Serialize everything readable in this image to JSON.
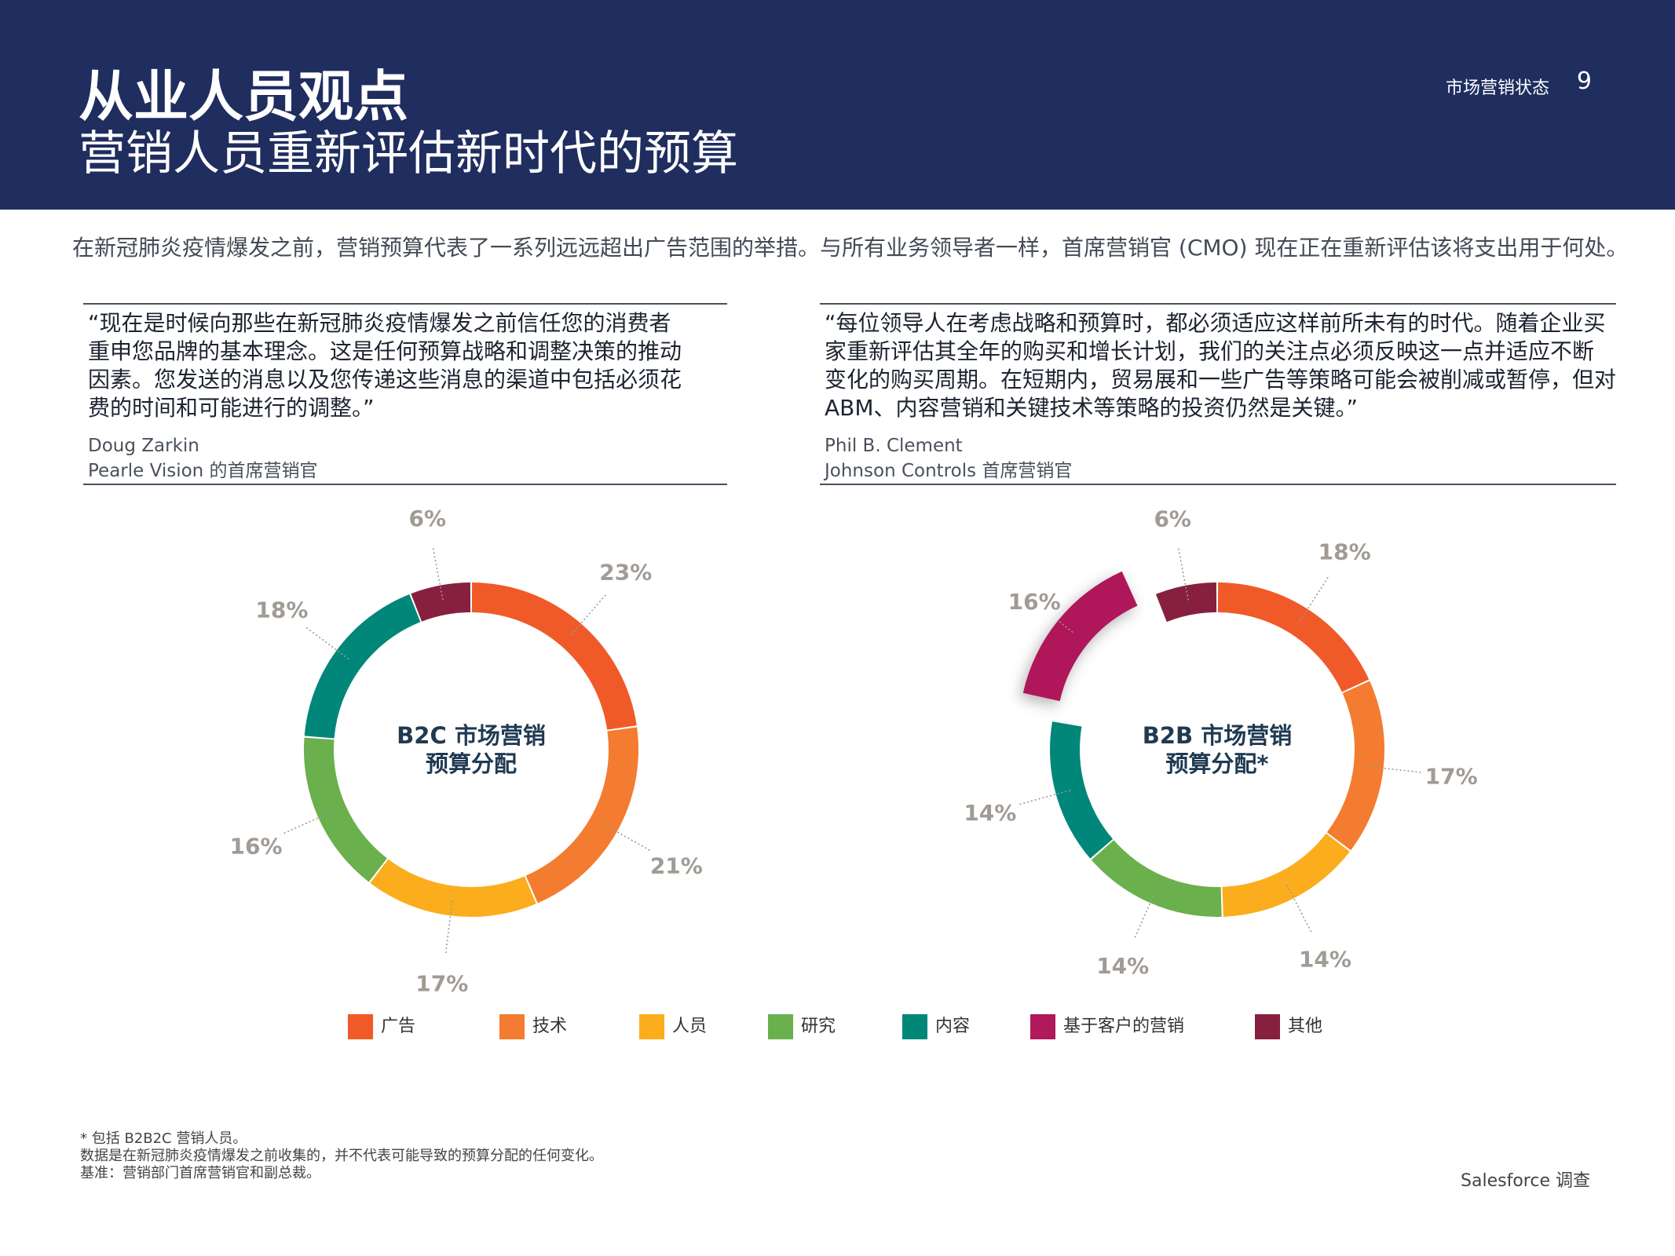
{
  "header": {
    "title_line1": "从业人员观点",
    "title_line2": "营销人员重新评估新时代的预算",
    "section": "市场营销状态",
    "page_number": "9"
  },
  "intro": "在新冠肺炎疫情爆发之前，营销预算代表了一系列远远超出广告范围的举措。与所有业务领导者一样，首席营销官 (CMO) 现在正在重新评估该将支出用于何处。",
  "quotes": [
    {
      "lines": [
        "“现在是时候向那些在新冠肺炎疫情爆发之前信任您的消费者",
        "重申您品牌的基本理念。这是任何预算战略和调整决策的推动",
        "因素。您发送的消息以及您传递这些消息的渠道中包括必须花",
        "费的时间和可能进行的调整。”"
      ],
      "author": "Doug Zarkin",
      "role": "Pearle Vision 的首席营销官"
    },
    {
      "lines": [
        "“每位领导人在考虑战略和预算时，都必须适应这样前所未有的时代。随着企业买",
        "家重新评估其全年的购买和增长计划，我们的关注点必须反映这一点并适应不断",
        "变化的购买周期。在短期内，贸易展和一些广告等策略可能会被削减或暂停，但对",
        "ABM、内容营销和关键技术等策略的投资仍然是关键。”"
      ],
      "author": "Phil B. Clement",
      "role": "Johnson Controls 首席营销官"
    }
  ],
  "chart_data": [
    {
      "type": "pie",
      "variant": "donut",
      "center_label": [
        "B2C 市场营销",
        "预算分配"
      ],
      "categories": [
        "广告",
        "技术",
        "人员",
        "研究",
        "内容",
        "其他"
      ],
      "values": [
        23,
        21,
        17,
        16,
        18,
        6
      ],
      "labels": [
        "23%",
        "21%",
        "17%",
        "16%",
        "18%",
        "6%"
      ],
      "colors": [
        "#f05a28",
        "#f37c30",
        "#fbad1d",
        "#6ab04c",
        "#00877a",
        "#87203f"
      ]
    },
    {
      "type": "pie",
      "variant": "donut",
      "center_label": [
        "B2B 市场营销",
        "预算分配*"
      ],
      "categories": [
        "广告",
        "技术",
        "人员",
        "研究",
        "内容",
        "基于客户的营销",
        "其他"
      ],
      "values": [
        18,
        17,
        14,
        14,
        14,
        16,
        6
      ],
      "labels": [
        "18%",
        "17%",
        "14%",
        "14%",
        "14%",
        "16%",
        "6%"
      ],
      "exploded": "基于客户的营销",
      "colors": [
        "#f05a28",
        "#f37c30",
        "#fbad1d",
        "#6ab04c",
        "#00877a",
        "#b0195a",
        "#87203f"
      ]
    }
  ],
  "legend": [
    {
      "label": "广告",
      "color": "#f05a28"
    },
    {
      "label": "技术",
      "color": "#f37c30"
    },
    {
      "label": "人员",
      "color": "#fbad1d"
    },
    {
      "label": "研究",
      "color": "#6ab04c"
    },
    {
      "label": "内容",
      "color": "#00877a"
    },
    {
      "label": "基于客户的营销",
      "color": "#b0195a"
    },
    {
      "label": "其他",
      "color": "#87203f"
    }
  ],
  "footnotes": [
    "* 包括 B2B2C 营销人员。",
    "数据是在新冠肺炎疫情爆发之前收集的，并不代表可能导致的预算分配的任何变化。",
    "基准：营销部门首席营销官和副总裁。"
  ],
  "source": "Salesforce 调查"
}
